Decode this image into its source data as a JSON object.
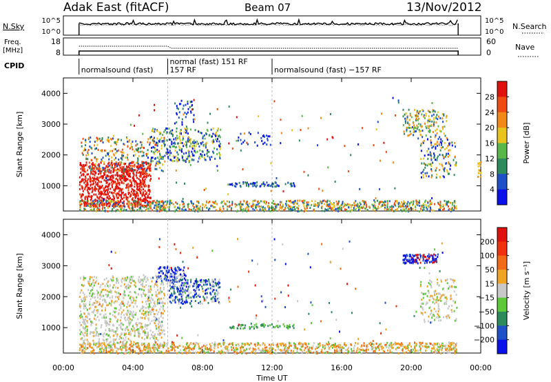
{
  "header": {
    "station": "Adak East (fitACF)",
    "beam": "Beam 07",
    "date": "13/Nov/2012"
  },
  "panel_nsky": {
    "left_label": "N.Sky",
    "right_label": "N.Search",
    "left_ticks": [
      "10^5",
      "10^0"
    ],
    "right_ticks": [
      "10^5",
      "10^0"
    ]
  },
  "panel_freq": {
    "left_label_1": "Freq.",
    "left_label_2": "[MHz]",
    "right_label": "Nave",
    "left_ticks": [
      "18",
      "8"
    ],
    "right_ticks": [
      "60",
      "0"
    ]
  },
  "cpid": {
    "label": "CPID",
    "segments": [
      {
        "start_h": 0.9,
        "label": "normalsound (fast)"
      },
      {
        "start_h": 6.0,
        "label": "normal (fast) 151 RF"
      },
      {
        "start_h": 6.0,
        "label": "157 RF"
      },
      {
        "start_h": 12.0,
        "label": "normalsound (fast) −157 RF"
      }
    ]
  },
  "time_axis": {
    "label": "Time UT",
    "ticks": [
      "00:00",
      "04:00",
      "08:00",
      "12:00",
      "16:00",
      "20:00",
      "00:00"
    ]
  },
  "chart_data": [
    {
      "type": "heatmap",
      "ylabel": "Slant Range [km]",
      "xlabel": "",
      "xlim_hours": [
        0,
        24
      ],
      "ylim": [
        180,
        4500
      ],
      "yticks": [
        "1000",
        "2000",
        "3000",
        "4000"
      ],
      "colorbar": {
        "label": "Power [dB]",
        "ticks": [
          "4",
          "8",
          "12",
          "16",
          "20",
          "24",
          "28"
        ],
        "colors": [
          "#0a10e8",
          "#1f50c8",
          "#2e8a5c",
          "#5ab84a",
          "#e8c41c",
          "#f28a1a",
          "#f04a14",
          "#e0100c"
        ]
      }
    },
    {
      "type": "heatmap",
      "ylabel": "Slant Range [km]",
      "xlabel": "Time UT",
      "xlim_hours": [
        0,
        24
      ],
      "ylim": [
        180,
        4500
      ],
      "yticks": [
        "1000",
        "2000",
        "3000",
        "4000"
      ],
      "colorbar": {
        "label": "Velocity [m s⁻¹]",
        "ticks": [
          "200",
          "100",
          "50",
          "15",
          "−15",
          "−50",
          "−100",
          "−200"
        ],
        "colors": [
          "#0a10e8",
          "#1f50c8",
          "#2e8a5c",
          "#5ec83a",
          "#c8c8c8",
          "#f0a424",
          "#f06a18",
          "#f0300e",
          "#e0100c"
        ]
      }
    }
  ]
}
